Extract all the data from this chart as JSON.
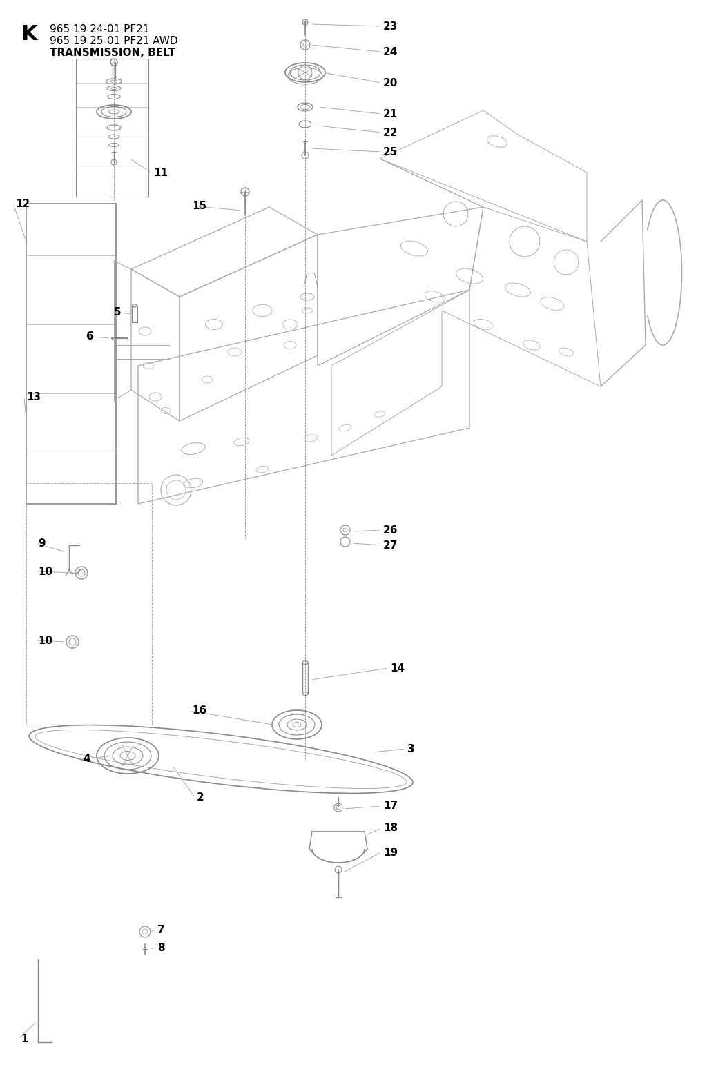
{
  "title_letter": "K",
  "title_line1": "965 19 24-01 PF21",
  "title_line2": "965 19 25-01 PF21 AWD",
  "title_line3": "TRANSMISSION, BELT",
  "bg_color": "#ffffff",
  "line_color": "#aaaaaa",
  "dark_line": "#888888",
  "text_color": "#000000",
  "label_fontsize": 11,
  "title_fontsize": 11,
  "fig_w": 10.24,
  "fig_h": 15.46,
  "dpi": 100
}
